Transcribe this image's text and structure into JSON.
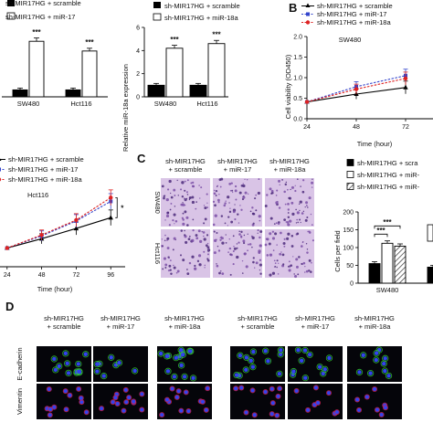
{
  "panels": {
    "B": "B",
    "C": "C",
    "D": "D"
  },
  "legend_top_left": [
    "sh-MIR17HG + scramble",
    "sh-MIR17HG + miR-17"
  ],
  "legend_top_mid": [
    "sh-MIR17HG + scramble",
    "sh-MIR17HG + miR-18a"
  ],
  "legend_top_right": [
    "sh-MIR17HG + scramble",
    "sh-MIR17HG + miR-17",
    "sh-MIR17HG + miR-18a"
  ],
  "legend_mid_left": [
    "sh-MIR17HG + scramble",
    "sh-MIR17HG + miR-17",
    "sh-MIR17HG + miR-18a"
  ],
  "legend_mid_right": [
    "sh-MIR17HG + scra",
    "sh-MIR17HG + miR-",
    "sh-MIR17HG + miR-"
  ],
  "panel_c_columns": [
    [
      "sh-MIR17HG",
      "+ scramble"
    ],
    [
      "sh-MIR17HG",
      "+ miR-17"
    ],
    [
      "sh-MIR17HG",
      "+ miR-18a"
    ]
  ],
  "panel_c_rows": [
    "SW480",
    "Hct116"
  ],
  "panel_d_columns": [
    [
      "sh-MIR17HG",
      "+ scramble"
    ],
    [
      "sh-MIR17HG",
      "+ miR-17"
    ],
    [
      "sh-MIR17HG",
      "+ miR-18a"
    ],
    [
      "sh-MIR17HG",
      "+ scramble"
    ],
    [
      "sh-MIR17HG",
      "+ miR-17"
    ],
    [
      "sh-MIR17HG",
      "+ miR-18a"
    ]
  ],
  "panel_d_rows": [
    "E-cadherin",
    "Vimentin"
  ],
  "colors": {
    "scramble": "#000000",
    "miR-17": "#3344cc",
    "miR-18a": "#dd2222",
    "fluor_bg": "#05050a",
    "well_bg": "#d9c4e6"
  },
  "chart_data": [
    {
      "type": "bar",
      "categories": [
        "SW480",
        "Hct116"
      ],
      "series": [
        {
          "name": "sh-MIR17HG + scramble",
          "values": [
            1.0,
            1.0
          ],
          "fill": "#000000"
        },
        {
          "name": "sh-MIR17HG + miR-17",
          "values": [
            8.0,
            6.6
          ],
          "fill": "#ffffff"
        }
      ],
      "significance": [
        "***",
        "***"
      ],
      "xlabel": "",
      "ylabel": "",
      "ylim": [
        0,
        10
      ]
    },
    {
      "type": "bar",
      "categories": [
        "SW480",
        "Hct116"
      ],
      "series": [
        {
          "name": "sh-MIR17HG + scramble",
          "values": [
            1.0,
            1.0
          ],
          "fill": "#000000"
        },
        {
          "name": "sh-MIR17HG + miR-18a",
          "values": [
            4.2,
            4.6
          ],
          "fill": "#ffffff"
        }
      ],
      "significance": [
        "***",
        "***"
      ],
      "xlabel": "",
      "ylabel": "Relative miR-18a expression",
      "yticks": [
        "0",
        "2",
        "4",
        "6"
      ],
      "ylim": [
        0,
        6
      ]
    },
    {
      "type": "line",
      "title": "SW480",
      "x": [
        24,
        48,
        72
      ],
      "xticks": [
        "24",
        "48",
        "72"
      ],
      "series": [
        {
          "name": "sh-MIR17HG + scramble",
          "values": [
            0.41,
            0.6,
            0.76
          ]
        },
        {
          "name": "sh-MIR17HG + miR-17",
          "values": [
            0.41,
            0.78,
            1.05
          ]
        },
        {
          "name": "sh-MIR17HG + miR-18a",
          "values": [
            0.41,
            0.72,
            0.98
          ]
        }
      ],
      "xlabel": "Time (hour)",
      "ylabel": "Cell viability (OD450)",
      "yticks": [
        "0.0",
        "0.5",
        "1.0",
        "1.5",
        "2.0"
      ],
      "ylim": [
        0,
        2.0
      ],
      "xlim": [
        24,
        96
      ]
    },
    {
      "type": "line",
      "title": "Hct116",
      "x": [
        24,
        48,
        72,
        96
      ],
      "xticks": [
        "24",
        "48",
        "72",
        "96"
      ],
      "series": [
        {
          "name": "sh-MIR17HG + scramble",
          "values": [
            0.4,
            0.6,
            0.82,
            1.05
          ]
        },
        {
          "name": "sh-MIR17HG + miR-17",
          "values": [
            0.4,
            0.66,
            0.98,
            1.4
          ]
        },
        {
          "name": "sh-MIR17HG + miR-18a",
          "values": [
            0.4,
            0.68,
            1.0,
            1.48
          ]
        }
      ],
      "significance": [
        "*"
      ],
      "xlabel": "Time (hour)",
      "ylabel": "",
      "ylim": [
        0,
        1.8
      ],
      "xlim": [
        14,
        106
      ]
    },
    {
      "type": "bar",
      "categories": [
        "SW480",
        "H"
      ],
      "series": [
        {
          "name": "sh-MIR17HG + scramble",
          "values": [
            55,
            45
          ],
          "fill": "#000000"
        },
        {
          "name": "sh-MIR17HG + miR-17",
          "values": [
            112,
            0
          ],
          "fill": "#ffffff"
        },
        {
          "name": "sh-MIR17HG + miR-18a",
          "values": [
            104,
            0
          ],
          "fill": "hatch"
        }
      ],
      "significance": [
        "***",
        "***"
      ],
      "xlabel": "",
      "ylabel": "Cells per field",
      "yticks": [
        "0",
        "50",
        "100",
        "150",
        "200"
      ],
      "ylim": [
        0,
        200
      ]
    }
  ]
}
